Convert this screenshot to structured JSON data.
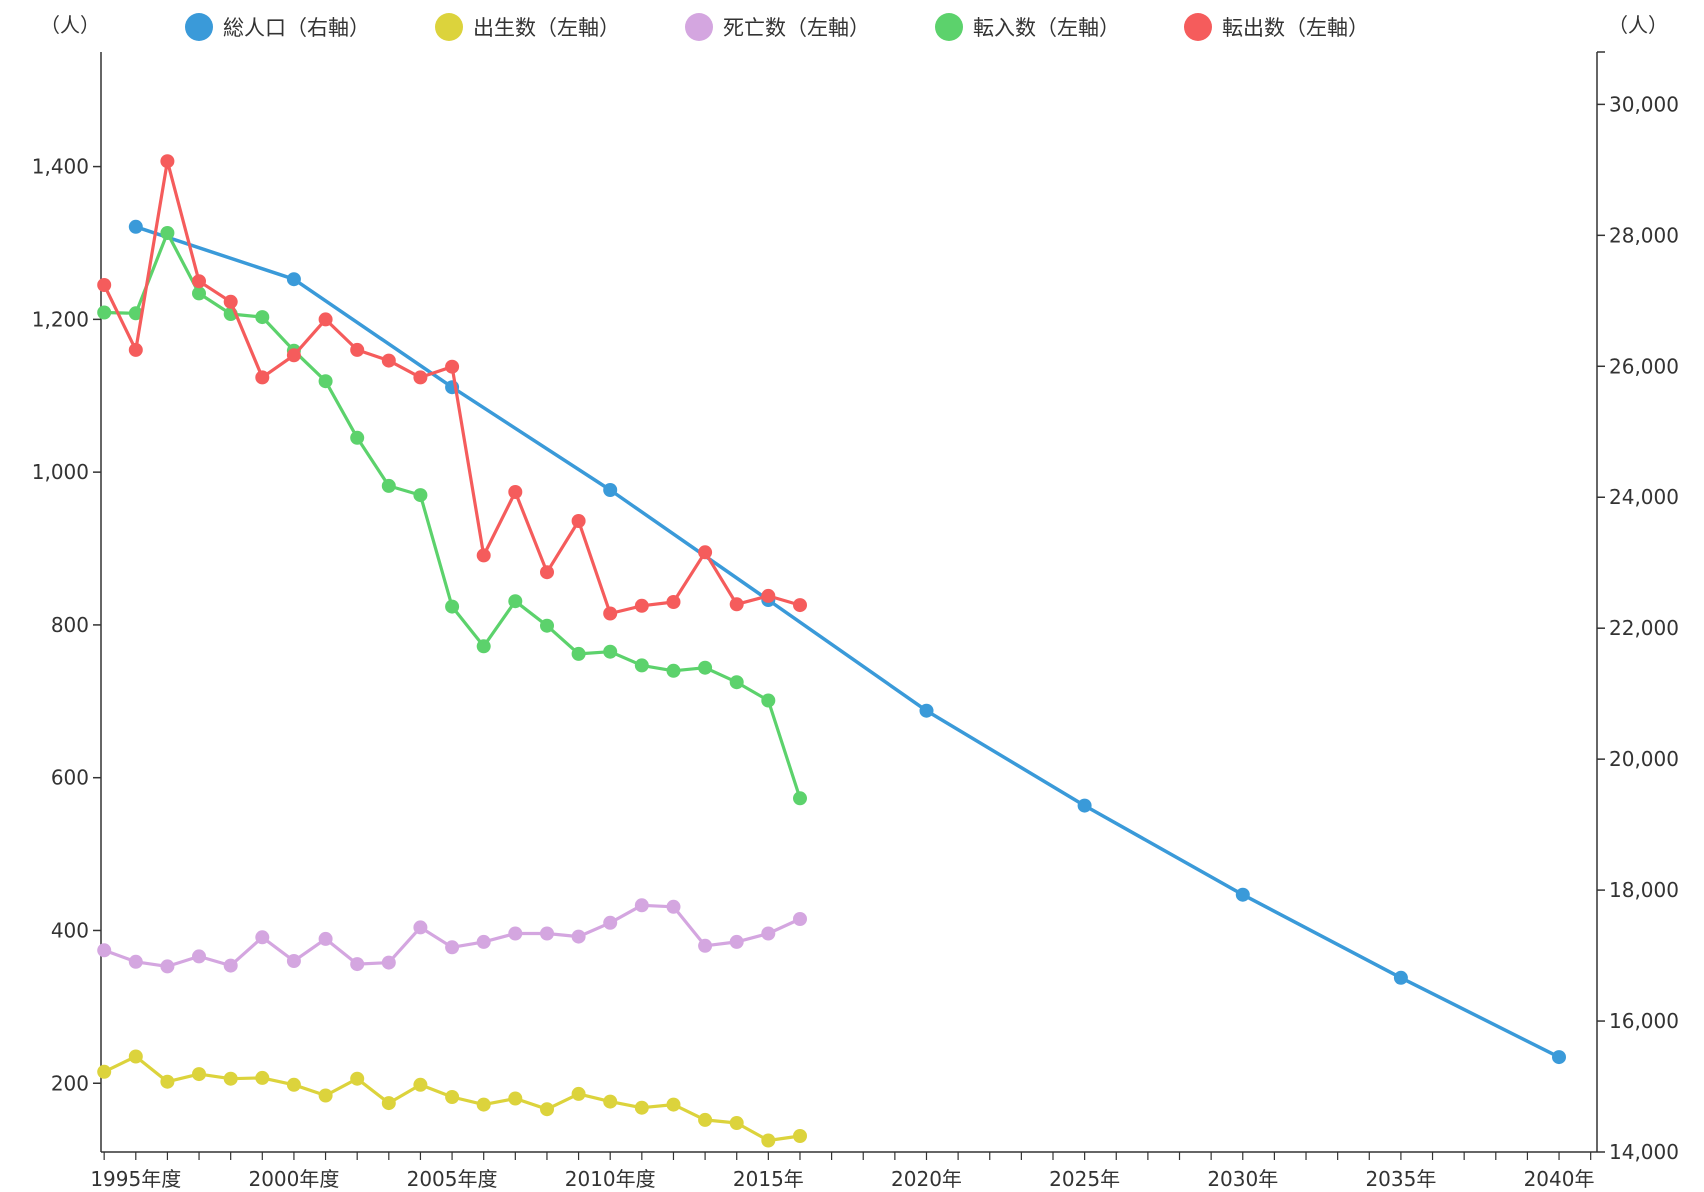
{
  "chart_data": {
    "type": "line",
    "left_axis": {
      "unit": "（人）",
      "range": [
        110,
        1550
      ],
      "ticks": [
        "200",
        "400",
        "600",
        "800",
        "1,000",
        "1,200",
        "1,400"
      ],
      "tick_values": [
        200,
        400,
        600,
        800,
        1000,
        1200,
        1400
      ]
    },
    "right_axis": {
      "unit": "（人）",
      "range": [
        14000,
        30800
      ],
      "ticks": [
        "14,000",
        "16,000",
        "18,000",
        "20,000",
        "22,000",
        "24,000",
        "26,000",
        "28,000",
        "30,000"
      ],
      "tick_values": [
        14000,
        16000,
        18000,
        20000,
        22000,
        24000,
        26000,
        28000,
        30000
      ]
    },
    "x_axis": {
      "range": [
        1993.9,
        2041.2
      ],
      "labels": [
        {
          "year": 1995,
          "text": "1995年度"
        },
        {
          "year": 2000,
          "text": "2000年度"
        },
        {
          "year": 2005,
          "text": "2005年度"
        },
        {
          "year": 2010,
          "text": "2010年度"
        },
        {
          "year": 2015,
          "text": "2015年"
        },
        {
          "year": 2020,
          "text": "2020年"
        },
        {
          "year": 2025,
          "text": "2025年"
        },
        {
          "year": 2030,
          "text": "2030年"
        },
        {
          "year": 2035,
          "text": "2035年"
        },
        {
          "year": 2040,
          "text": "2040年"
        }
      ]
    },
    "legend_position": "top",
    "series": [
      {
        "name": "総人口（右軸）",
        "color": "#3a9ad9",
        "axis": "right",
        "x": [
          1995,
          2000,
          2005,
          2010,
          2015,
          2020,
          2025,
          2030,
          2035,
          2040
        ],
        "values": [
          28130,
          27330,
          25680,
          24110,
          22430,
          20740,
          19290,
          17930,
          16660,
          15450
        ]
      },
      {
        "name": "出生数（左軸）",
        "color": "#dcd33c",
        "axis": "left",
        "x": [
          1994,
          1995,
          1996,
          1997,
          1998,
          1999,
          2000,
          2001,
          2002,
          2003,
          2004,
          2005,
          2006,
          2007,
          2008,
          2009,
          2010,
          2011,
          2012,
          2013,
          2014,
          2015,
          2016
        ],
        "values": [
          215,
          235,
          202,
          212,
          206,
          207,
          198,
          184,
          206,
          174,
          198,
          182,
          172,
          180,
          166,
          186,
          176,
          168,
          172,
          152,
          148,
          125,
          131
        ]
      },
      {
        "name": "死亡数（左軸）",
        "color": "#d4a6e0",
        "axis": "left",
        "x": [
          1994,
          1995,
          1996,
          1997,
          1998,
          1999,
          2000,
          2001,
          2002,
          2003,
          2004,
          2005,
          2006,
          2007,
          2008,
          2009,
          2010,
          2011,
          2012,
          2013,
          2014,
          2015,
          2016
        ],
        "values": [
          374,
          359,
          353,
          366,
          354,
          391,
          360,
          389,
          356,
          358,
          404,
          378,
          385,
          396,
          396,
          392,
          410,
          433,
          431,
          380,
          385,
          396,
          415
        ]
      },
      {
        "name": "転入数（左軸）",
        "color": "#5cd26c",
        "axis": "left",
        "x": [
          1994,
          1995,
          1996,
          1997,
          1998,
          1999,
          2000,
          2001,
          2002,
          2003,
          2004,
          2005,
          2006,
          2007,
          2008,
          2009,
          2010,
          2011,
          2012,
          2013,
          2014,
          2015,
          2016
        ],
        "values": [
          1209,
          1208,
          1313,
          1234,
          1207,
          1203,
          1159,
          1119,
          1045,
          982,
          970,
          824,
          772,
          831,
          799,
          762,
          765,
          747,
          740,
          744,
          725,
          701,
          573
        ]
      },
      {
        "name": "転出数（左軸）",
        "color": "#f55c5c",
        "axis": "left",
        "x": [
          1994,
          1995,
          1996,
          1997,
          1998,
          1999,
          2000,
          2001,
          2002,
          2003,
          2004,
          2005,
          2006,
          2007,
          2008,
          2009,
          2010,
          2011,
          2012,
          2013,
          2014,
          2015,
          2016
        ],
        "values": [
          1245,
          1160,
          1407,
          1250,
          1223,
          1124,
          1153,
          1200,
          1160,
          1146,
          1124,
          1138,
          891,
          974,
          869,
          936,
          815,
          825,
          830,
          895,
          827,
          838,
          826
        ]
      }
    ]
  }
}
